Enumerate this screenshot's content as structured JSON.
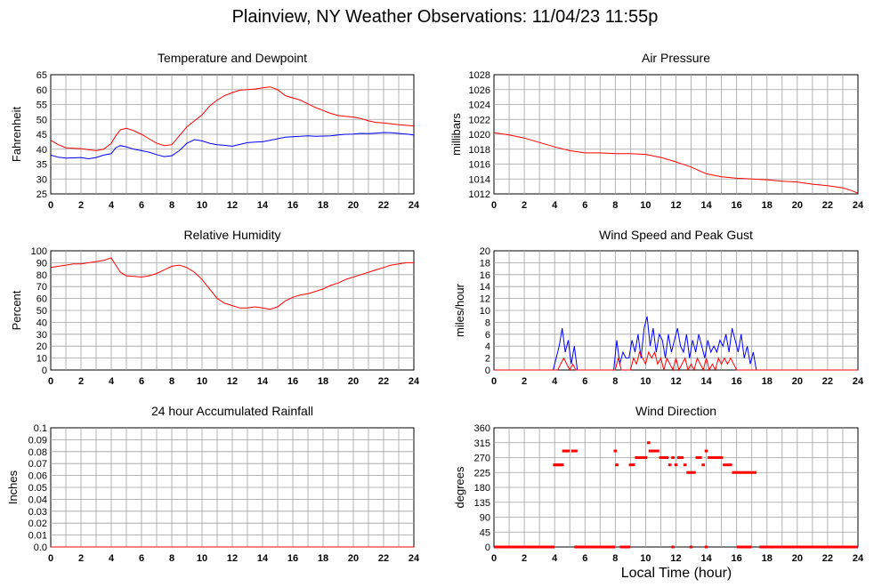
{
  "title": "Plainview, NY Weather Observations: 11/04/23 11:55p",
  "xlabel": "Local Time (hour)",
  "chart_data": [
    {
      "id": "temp",
      "type": "line",
      "title": "Temperature and Dewpoint",
      "ylabel": "Fahrenheit",
      "xlim": [
        0,
        24
      ],
      "ylim": [
        25,
        65
      ],
      "yticks": [
        "25",
        "30",
        "35",
        "40",
        "45",
        "50",
        "55",
        "60",
        "65"
      ],
      "xticks": [
        "0",
        "2",
        "4",
        "6",
        "8",
        "10",
        "12",
        "14",
        "16",
        "18",
        "20",
        "22",
        "24"
      ],
      "grid": true,
      "series": [
        {
          "color": "#ff0000",
          "x": [
            0,
            0.5,
            1,
            1.5,
            2,
            2.5,
            3,
            3.5,
            4,
            4.3,
            4.6,
            5,
            5.5,
            6,
            6.5,
            7,
            7.5,
            8,
            8.5,
            9,
            9.5,
            10,
            10.5,
            11,
            11.5,
            12,
            12.5,
            13,
            13.5,
            14,
            14.5,
            15,
            15.5,
            16,
            16.5,
            17,
            17.5,
            18,
            18.5,
            19,
            19.5,
            20,
            20.5,
            21,
            21.5,
            22,
            22.5,
            23,
            23.5,
            24
          ],
          "y": [
            43,
            41.5,
            40.5,
            40.3,
            40.2,
            39.8,
            39.5,
            40,
            42,
            44.5,
            46.5,
            47,
            46.2,
            45,
            43.5,
            42,
            41.2,
            41.5,
            44.5,
            47.5,
            49.5,
            51.5,
            54.5,
            56.5,
            58,
            59,
            59.8,
            60,
            60.2,
            60.6,
            60.9,
            60,
            58,
            57.2,
            56.5,
            55.2,
            54,
            53,
            52,
            51.3,
            51,
            50.8,
            50.3,
            49.5,
            49,
            48.8,
            48.5,
            48.2,
            48,
            47.8
          ]
        },
        {
          "color": "#0000ff",
          "x": [
            0,
            0.5,
            1,
            1.5,
            2,
            2.5,
            3,
            3.5,
            4,
            4.3,
            4.6,
            5,
            5.5,
            6,
            6.5,
            7,
            7.5,
            8,
            8.5,
            9,
            9.5,
            10,
            10.5,
            11,
            11.5,
            12,
            12.5,
            13,
            13.5,
            14,
            14.5,
            15,
            15.5,
            16,
            16.5,
            17,
            17.5,
            18,
            18.5,
            19,
            19.5,
            20,
            20.5,
            21,
            21.5,
            22,
            22.5,
            23,
            23.5,
            24
          ],
          "y": [
            38,
            37.3,
            37,
            37.1,
            37.2,
            36.8,
            37.2,
            38,
            38.5,
            40.5,
            41.2,
            40.8,
            40,
            39.5,
            39,
            38.2,
            37.5,
            37.8,
            39.5,
            42,
            43.2,
            42.8,
            42,
            41.5,
            41.3,
            41,
            41.6,
            42.2,
            42.4,
            42.5,
            43,
            43.5,
            44,
            44.2,
            44.3,
            44.5,
            44.3,
            44.4,
            44.5,
            44.8,
            45,
            45.1,
            45.3,
            45.2,
            45.4,
            45.6,
            45.5,
            45.3,
            45.1,
            44.8
          ]
        }
      ]
    },
    {
      "id": "pressure",
      "type": "line",
      "title": "Air Pressure",
      "ylabel": "millibars",
      "xlim": [
        0,
        24
      ],
      "ylim": [
        1012,
        1028
      ],
      "yticks": [
        "1012",
        "1014",
        "1016",
        "1018",
        "1020",
        "1022",
        "1024",
        "1026",
        "1028"
      ],
      "xticks": [
        "0",
        "2",
        "4",
        "6",
        "8",
        "10",
        "12",
        "14",
        "16",
        "18",
        "20",
        "22",
        "24"
      ],
      "grid": true,
      "series": [
        {
          "color": "#ff0000",
          "x": [
            0,
            1,
            2,
            3,
            4,
            5,
            6,
            7,
            8,
            9,
            10,
            11,
            12,
            13,
            14,
            15,
            16,
            17,
            18,
            19,
            20,
            21,
            22,
            23,
            23.5,
            24
          ],
          "y": [
            1020.2,
            1019.9,
            1019.5,
            1018.9,
            1018.3,
            1017.8,
            1017.5,
            1017.5,
            1017.4,
            1017.4,
            1017.3,
            1016.9,
            1016.3,
            1015.6,
            1014.7,
            1014.3,
            1014.1,
            1014.0,
            1013.9,
            1013.7,
            1013.6,
            1013.3,
            1013.1,
            1012.8,
            1012.5,
            1012.1
          ]
        }
      ]
    },
    {
      "id": "humidity",
      "type": "line",
      "title": "Relative Humidity",
      "ylabel": "Percent",
      "xlim": [
        0,
        24
      ],
      "ylim": [
        0,
        100
      ],
      "yticks": [
        "0",
        "10",
        "20",
        "30",
        "40",
        "50",
        "60",
        "70",
        "80",
        "90",
        "100"
      ],
      "xticks": [
        "0",
        "2",
        "4",
        "6",
        "8",
        "10",
        "12",
        "14",
        "16",
        "18",
        "20",
        "22",
        "24"
      ],
      "grid": true,
      "series": [
        {
          "color": "#ff0000",
          "x": [
            0,
            0.5,
            1,
            1.5,
            2,
            2.5,
            3,
            3.5,
            4,
            4.3,
            4.6,
            5,
            5.5,
            6,
            6.5,
            7,
            7.5,
            8,
            8.5,
            9,
            9.5,
            10,
            10.5,
            11,
            11.5,
            12,
            12.5,
            13,
            13.5,
            14,
            14.5,
            15,
            15.5,
            16,
            16.5,
            17,
            17.5,
            18,
            18.5,
            19,
            19.5,
            20,
            20.5,
            21,
            21.5,
            22,
            22.5,
            23,
            23.5,
            24
          ],
          "y": [
            86,
            87,
            88,
            89,
            89,
            90,
            91,
            92,
            94,
            88,
            82,
            79,
            78.5,
            78,
            79,
            81,
            84,
            87,
            88,
            86,
            82,
            76,
            68,
            60,
            56,
            54,
            52,
            52,
            53,
            52,
            51,
            53,
            58,
            61,
            63,
            64,
            66,
            68,
            71,
            73,
            76,
            78,
            80,
            82,
            84,
            86,
            88,
            89,
            90,
            90
          ]
        }
      ]
    },
    {
      "id": "wind",
      "type": "line",
      "title": "Wind Speed and Peak Gust",
      "ylabel": "miles/hour",
      "xlim": [
        0,
        24
      ],
      "ylim": [
        0,
        20
      ],
      "yticks": [
        "0",
        "2",
        "4",
        "6",
        "8",
        "10",
        "12",
        "14",
        "16",
        "18",
        "20"
      ],
      "xticks": [
        "0",
        "2",
        "4",
        "6",
        "8",
        "10",
        "12",
        "14",
        "16",
        "18",
        "20",
        "22",
        "24"
      ],
      "grid": true,
      "series": [
        {
          "color": "#0000ff",
          "x": [
            0,
            3.9,
            4.1,
            4.3,
            4.5,
            4.7,
            4.9,
            5.1,
            5.3,
            5.5,
            5.7,
            7.9,
            8.1,
            8.3,
            8.5,
            8.7,
            8.9,
            9.1,
            9.3,
            9.5,
            9.7,
            9.9,
            10.1,
            10.3,
            10.5,
            10.7,
            10.9,
            11.1,
            11.3,
            11.5,
            11.7,
            11.9,
            12.1,
            12.3,
            12.5,
            12.7,
            12.9,
            13.1,
            13.3,
            13.5,
            13.7,
            13.9,
            14.1,
            14.3,
            14.5,
            14.7,
            14.9,
            15.1,
            15.3,
            15.5,
            15.7,
            15.9,
            16.1,
            16.3,
            16.5,
            16.7,
            16.9,
            17.1,
            17.3,
            24
          ],
          "y": [
            0,
            0,
            2,
            4,
            7,
            3,
            5,
            1,
            4,
            0,
            0,
            0,
            5,
            1,
            3,
            2,
            2,
            5,
            3,
            6,
            2,
            7,
            9,
            4,
            7,
            3,
            6,
            5,
            2,
            6,
            3,
            5,
            7,
            4,
            3,
            6,
            2,
            5,
            3,
            6,
            4,
            2,
            5,
            3,
            4,
            3,
            5,
            4,
            6,
            3,
            7,
            5,
            3,
            6,
            2,
            4,
            1,
            3,
            0,
            0
          ]
        },
        {
          "color": "#ff0000",
          "x": [
            0,
            4.2,
            4.4,
            4.6,
            4.8,
            5,
            5.2,
            5.4,
            8,
            8.2,
            8.4,
            9,
            9.2,
            9.4,
            9.6,
            9.8,
            10,
            10.2,
            10.4,
            10.6,
            10.8,
            11,
            11.2,
            11.4,
            11.6,
            11.8,
            12,
            12.2,
            12.4,
            12.6,
            12.8,
            13,
            13.2,
            13.4,
            13.6,
            13.8,
            14,
            14.2,
            14.4,
            14.6,
            14.8,
            15,
            15.2,
            15.4,
            15.6,
            15.8,
            16,
            16.2,
            24
          ],
          "y": [
            0,
            0,
            1,
            2,
            1,
            0,
            1,
            0,
            0,
            2,
            0,
            0,
            2,
            1,
            3,
            2,
            1,
            3,
            2,
            3,
            1,
            2,
            0,
            2,
            1,
            0,
            2,
            0,
            1,
            2,
            0,
            1,
            0,
            2,
            1,
            0,
            2,
            0,
            1,
            0,
            2,
            1,
            2,
            1,
            2,
            1,
            0,
            0,
            0
          ]
        }
      ]
    },
    {
      "id": "rain",
      "type": "line",
      "title": "24 hour Accumulated Rainfall",
      "ylabel": "Inches",
      "xlim": [
        0,
        24
      ],
      "ylim": [
        0,
        0.1
      ],
      "yticks": [
        "0.0",
        "0.01",
        "0.02",
        "0.03",
        "0.04",
        "0.05",
        "0.06",
        "0.07",
        "0.08",
        "0.09",
        "0.1"
      ],
      "xticks": [
        "0",
        "2",
        "4",
        "6",
        "8",
        "10",
        "12",
        "14",
        "16",
        "18",
        "20",
        "22",
        "24"
      ],
      "grid": true,
      "series": [
        {
          "color": "#ff0000",
          "x": [
            0,
            24
          ],
          "y": [
            0,
            0
          ]
        }
      ]
    },
    {
      "id": "direction",
      "type": "scatter",
      "title": "Wind Direction",
      "ylabel": "degrees",
      "xlim": [
        0,
        24
      ],
      "ylim": [
        0,
        360
      ],
      "yticks": [
        "0",
        "45",
        "90",
        "135",
        "180",
        "225",
        "270",
        "315",
        "360"
      ],
      "xticks": [
        "0",
        "2",
        "4",
        "6",
        "8",
        "10",
        "12",
        "14",
        "16",
        "18",
        "20",
        "22",
        "24"
      ],
      "grid": true,
      "series": [
        {
          "color": "#ff0000",
          "x": [
            4,
            4.1,
            4.2,
            4.3,
            4.4,
            4.5,
            4.6,
            4.7,
            4.8,
            4.9,
            5.2,
            5.4,
            8,
            8.1,
            9,
            9.2,
            9.4,
            9.6,
            9.8,
            10,
            10.2,
            10.3,
            10.4,
            10.5,
            10.6,
            10.8,
            11,
            11.2,
            11.4,
            11.6,
            11.8,
            12,
            12.2,
            12.4,
            12.6,
            12.8,
            13,
            13.2,
            13.4,
            13.6,
            13.8,
            14,
            14.2,
            14.4,
            14.6,
            14.8,
            15,
            15.2,
            15.4,
            15.6,
            15.8,
            16,
            16.2,
            16.4,
            16.6,
            16.8,
            17,
            17.2
          ],
          "y": [
            248,
            248,
            248,
            248,
            248,
            248,
            290,
            290,
            290,
            290,
            290,
            290,
            290,
            248,
            248,
            248,
            270,
            270,
            270,
            270,
            315,
            290,
            290,
            290,
            290,
            290,
            270,
            270,
            270,
            248,
            270,
            248,
            270,
            270,
            248,
            225,
            225,
            225,
            270,
            270,
            248,
            290,
            270,
            270,
            270,
            270,
            270,
            248,
            248,
            248,
            225,
            225,
            225,
            225,
            225,
            225,
            225,
            225
          ]
        }
      ],
      "baseline_zero_ranges": [
        [
          0,
          4
        ],
        [
          5.3,
          8
        ],
        [
          8.3,
          9
        ],
        [
          11.7,
          11.9
        ],
        [
          12.9,
          13.1
        ],
        [
          13.9,
          14.1
        ],
        [
          16,
          17
        ],
        [
          17.5,
          24
        ]
      ]
    }
  ]
}
